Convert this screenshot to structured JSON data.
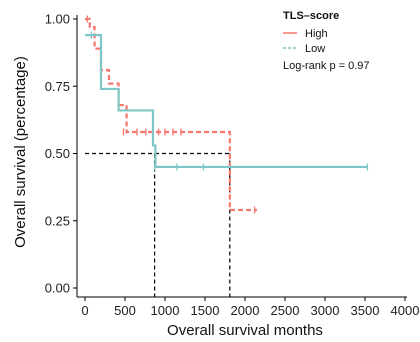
{
  "chart_data": {
    "type": "line",
    "subtype": "kaplan-meier",
    "xlabel": "Overall survival months",
    "ylabel": "Overall survival (percentage)",
    "xlim": [
      0,
      4000
    ],
    "ylim": [
      0,
      1
    ],
    "xticks": [
      0,
      500,
      1000,
      1500,
      2000,
      2500,
      3000,
      3500,
      4000
    ],
    "yticks": [
      0.0,
      0.25,
      0.5,
      0.75,
      1.0
    ],
    "ytick_labels": [
      "0.00",
      "0.25",
      "0.50",
      "0.75",
      "1.00"
    ],
    "grid": false,
    "legend": {
      "title": "TLS–score",
      "placement": "top-right",
      "entries": [
        "High",
        "Low"
      ]
    },
    "annotation": "Log-rank p = 0.97",
    "series": [
      {
        "name": "High",
        "color": "#F8766D",
        "linestyle": "dashed",
        "steps": [
          [
            0,
            1.0
          ],
          [
            60,
            0.97
          ],
          [
            120,
            0.89
          ],
          [
            200,
            0.81
          ],
          [
            300,
            0.76
          ],
          [
            420,
            0.68
          ],
          [
            520,
            0.58
          ],
          [
            1810,
            0.29
          ],
          [
            2150,
            0.29
          ]
        ],
        "censor": [
          [
            30,
            1.0
          ],
          [
            480,
            0.58
          ],
          [
            650,
            0.58
          ],
          [
            760,
            0.58
          ],
          [
            920,
            0.58
          ],
          [
            1000,
            0.58
          ],
          [
            1100,
            0.58
          ],
          [
            1200,
            0.58
          ],
          [
            2120,
            0.29
          ]
        ]
      },
      {
        "name": "Low",
        "color": "#7FC6C6",
        "linestyle": "solid",
        "steps": [
          [
            0,
            0.94
          ],
          [
            200,
            0.74
          ],
          [
            420,
            0.66
          ],
          [
            850,
            0.53
          ],
          [
            880,
            0.45
          ],
          [
            3530,
            0.45
          ]
        ],
        "censor": [
          [
            80,
            0.94
          ],
          [
            870,
            0.45
          ],
          [
            1150,
            0.45
          ],
          [
            1480,
            0.45
          ],
          [
            3530,
            0.45
          ]
        ]
      }
    ],
    "median_lines": [
      {
        "median": 870
      },
      {
        "median": 1810
      }
    ]
  }
}
